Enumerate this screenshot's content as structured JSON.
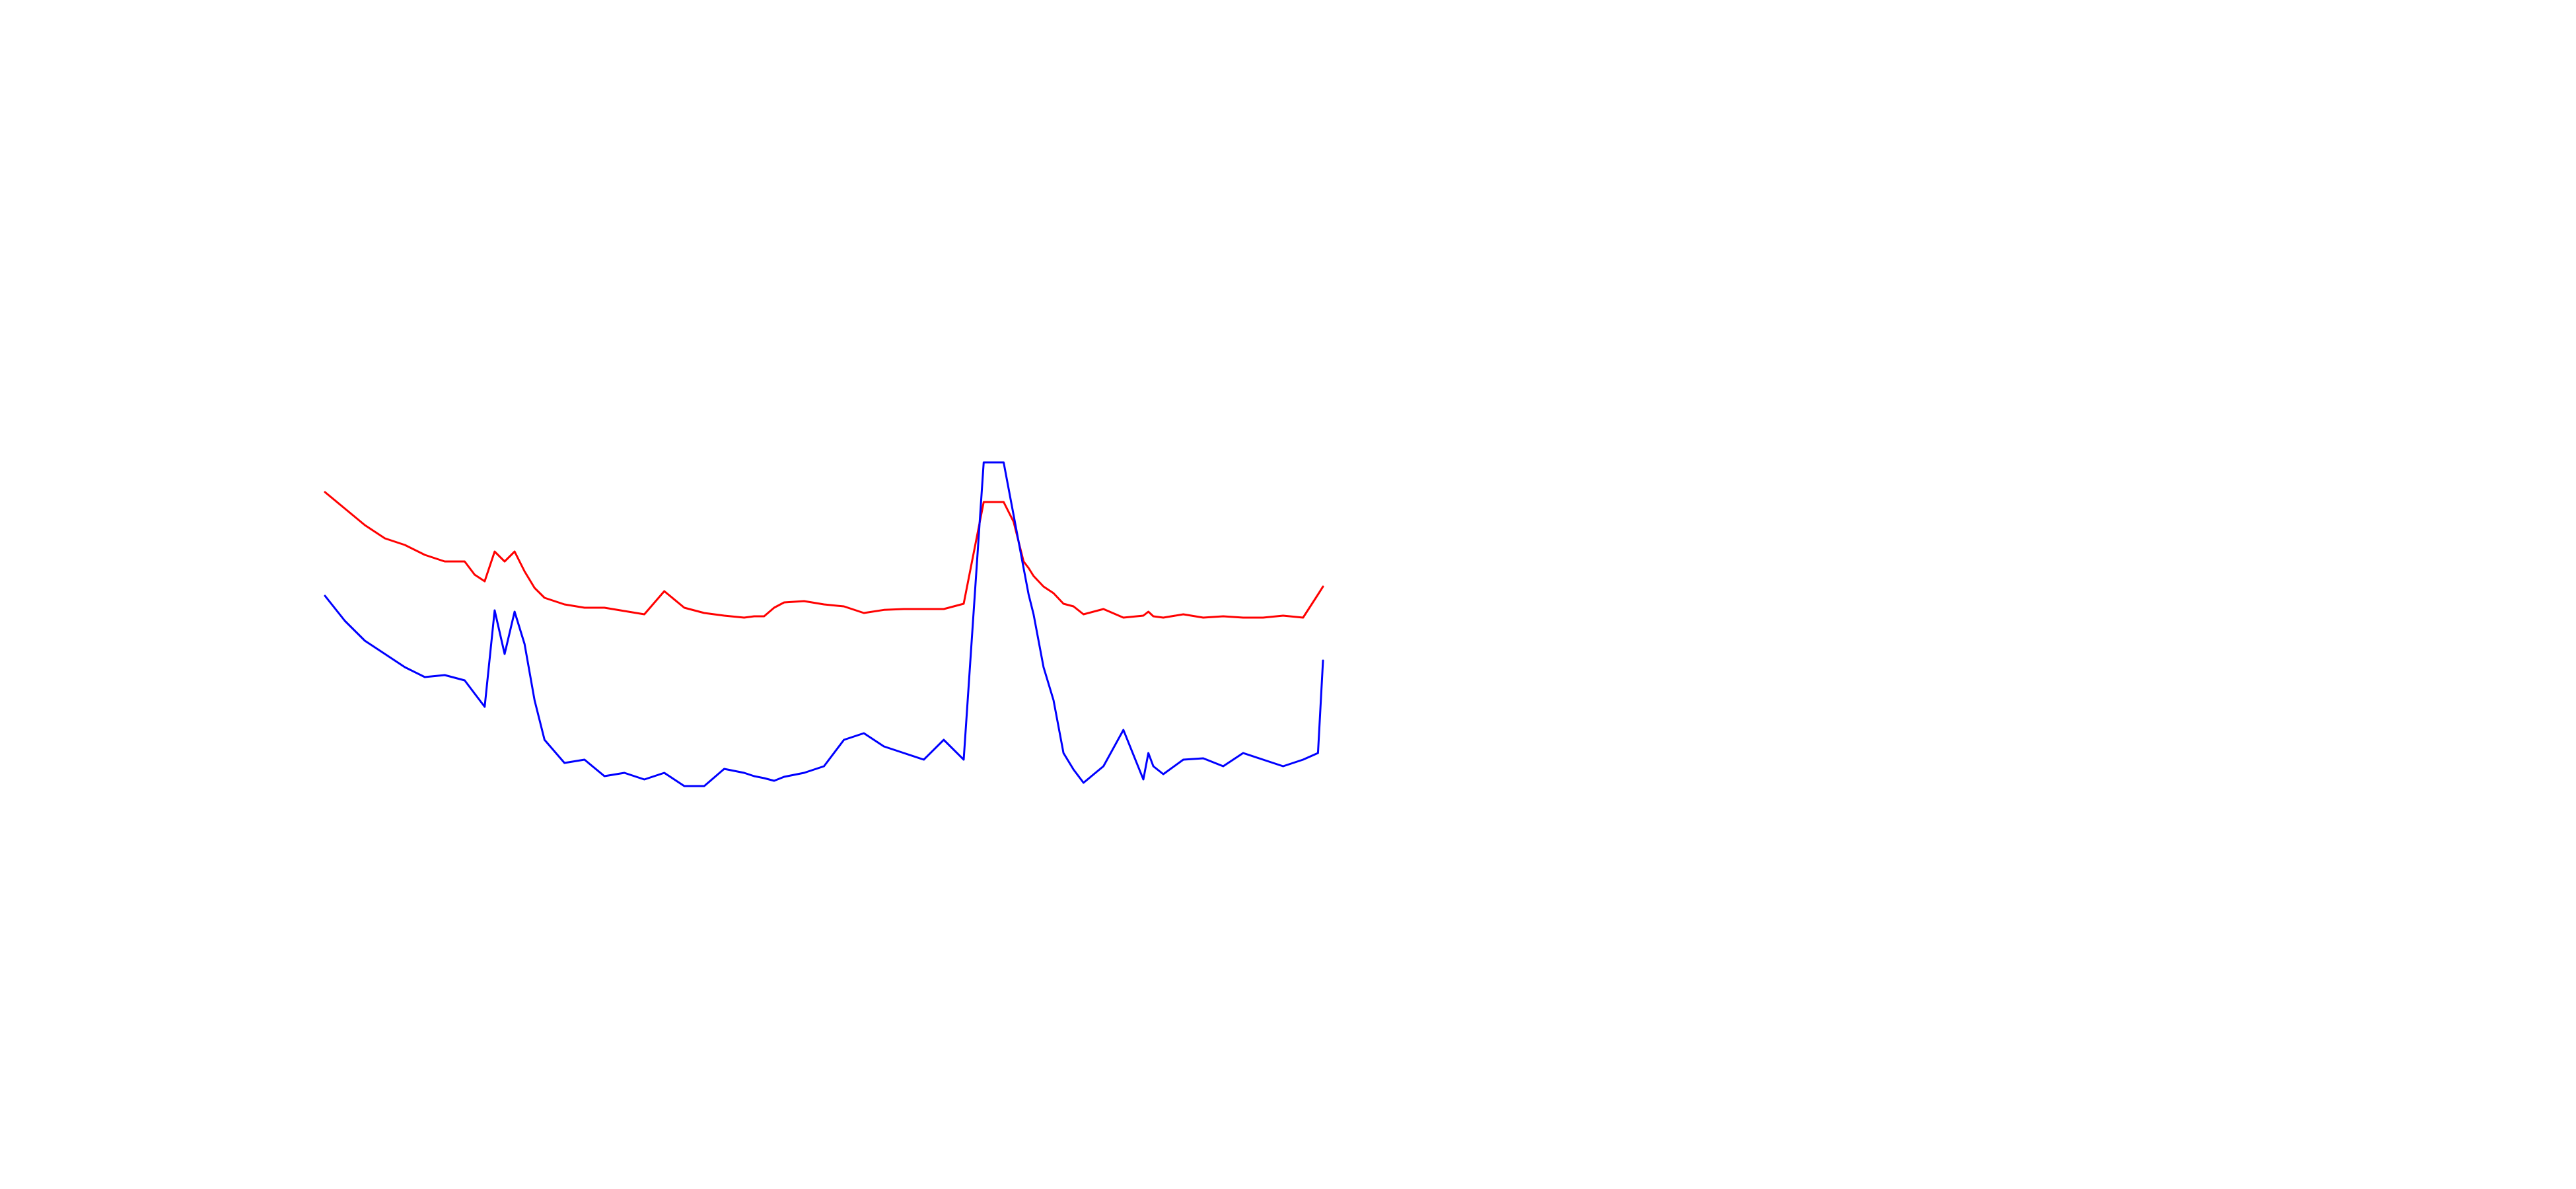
{
  "chart_data": {
    "type": "line",
    "title": "",
    "xlabel": "",
    "ylabel": "",
    "axes_visible": false,
    "grid": false,
    "legend": "none",
    "xlim": [
      0,
      1
    ],
    "ylim": [
      0,
      1
    ],
    "x": [
      0.0,
      0.02,
      0.04,
      0.06,
      0.08,
      0.1,
      0.12,
      0.14,
      0.15,
      0.16,
      0.17,
      0.18,
      0.19,
      0.2,
      0.21,
      0.22,
      0.24,
      0.26,
      0.28,
      0.3,
      0.32,
      0.34,
      0.36,
      0.38,
      0.4,
      0.42,
      0.43,
      0.44,
      0.45,
      0.46,
      0.48,
      0.5,
      0.52,
      0.54,
      0.56,
      0.58,
      0.6,
      0.62,
      0.64,
      0.66,
      0.68,
      0.69,
      0.7,
      0.705,
      0.71,
      0.72,
      0.73,
      0.74,
      0.75,
      0.76,
      0.78,
      0.8,
      0.82,
      0.825,
      0.83,
      0.84,
      0.86,
      0.88,
      0.9,
      0.92,
      0.94,
      0.96,
      0.98,
      0.995,
      1.0
    ],
    "series": [
      {
        "color": "#ff0000",
        "values": [
          0.815,
          0.79,
          0.765,
          0.745,
          0.735,
          0.72,
          0.71,
          0.71,
          0.69,
          0.68,
          0.725,
          0.71,
          0.725,
          0.695,
          0.67,
          0.655,
          0.645,
          0.64,
          0.64,
          0.635,
          0.63,
          0.665,
          0.64,
          0.632,
          0.628,
          0.625,
          0.627,
          0.627,
          0.64,
          0.648,
          0.65,
          0.645,
          0.642,
          0.632,
          0.6367,
          0.638,
          0.638,
          0.638,
          0.646,
          0.8,
          0.8,
          0.77,
          0.71,
          0.7,
          0.688,
          0.672,
          0.662,
          0.646,
          0.642,
          0.63,
          0.638,
          0.625,
          0.628,
          0.634,
          0.627,
          0.625,
          0.63,
          0.625,
          0.627,
          0.625,
          0.625,
          0.628,
          0.625,
          0.66,
          0.672
        ]
      },
      {
        "color": "#0000ff",
        "values": [
          0.658,
          0.62,
          0.59,
          0.57,
          0.55,
          0.535,
          0.538,
          0.53,
          0.51,
          0.49,
          0.636,
          0.57,
          0.634,
          0.585,
          0.5,
          0.44,
          0.405,
          0.41,
          0.385,
          0.39,
          0.38,
          0.39,
          0.37,
          0.37,
          0.396,
          0.39,
          0.385,
          0.382,
          0.378,
          0.384,
          0.39,
          0.4,
          0.44,
          0.45,
          0.43,
          0.42,
          0.41,
          0.44,
          0.41,
          0.86,
          0.86,
          0.78,
          0.7,
          0.66,
          0.63,
          0.55,
          0.5,
          0.42,
          0.395,
          0.375,
          0.4,
          0.455,
          0.38,
          0.42,
          0.4,
          0.388,
          0.41,
          0.412,
          0.4,
          0.42,
          0.41,
          0.4,
          0.41,
          0.42,
          0.56
        ]
      }
    ]
  }
}
